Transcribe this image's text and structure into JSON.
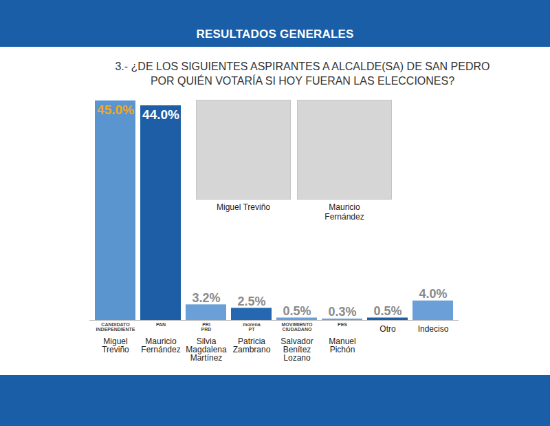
{
  "chart_data": {
    "type": "bar",
    "header": "RESULTADOS GENERALES",
    "title": "3.- ¿DE LOS SIGUIENTES ASPIRANTES A ALCALDE(SA) DE SAN PEDRO POR QUIÉN VOTARÍA SI HOY FUERAN LAS ELECCIONES?",
    "categories": [
      "Miguel Treviño",
      "Mauricio Fernández",
      "Silvia Magdalena Martínez",
      "Patricia Zambrano",
      "Salvador Benítez Lozano",
      "Manuel Pichón",
      "Otro",
      "Indeciso"
    ],
    "values": [
      45.0,
      44.0,
      3.2,
      2.5,
      0.5,
      0.3,
      0.5,
      4.0
    ],
    "value_labels": [
      "45.0%",
      "44.0%",
      "3.2%",
      "2.5%",
      "0.5%",
      "0.3%",
      "0.5%",
      "4.0%"
    ],
    "colors": [
      "#5b95d0",
      "#1e5ea6",
      "#6a9fd8",
      "#2567b0",
      "#6a9fd8",
      "#6a9fd8",
      "#1d5ea6",
      "#6a9fd8"
    ],
    "parties": [
      "CANDIDATO INDEPENDIENTE",
      "PAN",
      "PRI PRD",
      "morena PT",
      "MOVIMIENTO CIUDADANO",
      "PES",
      null,
      null
    ],
    "photo_captions": [
      "Miguel Treviño",
      "Mauricio Fernández"
    ],
    "ylim": [
      0,
      45
    ],
    "yticks": [],
    "data_labels": true,
    "tick_labels": "x",
    "grid": false
  }
}
